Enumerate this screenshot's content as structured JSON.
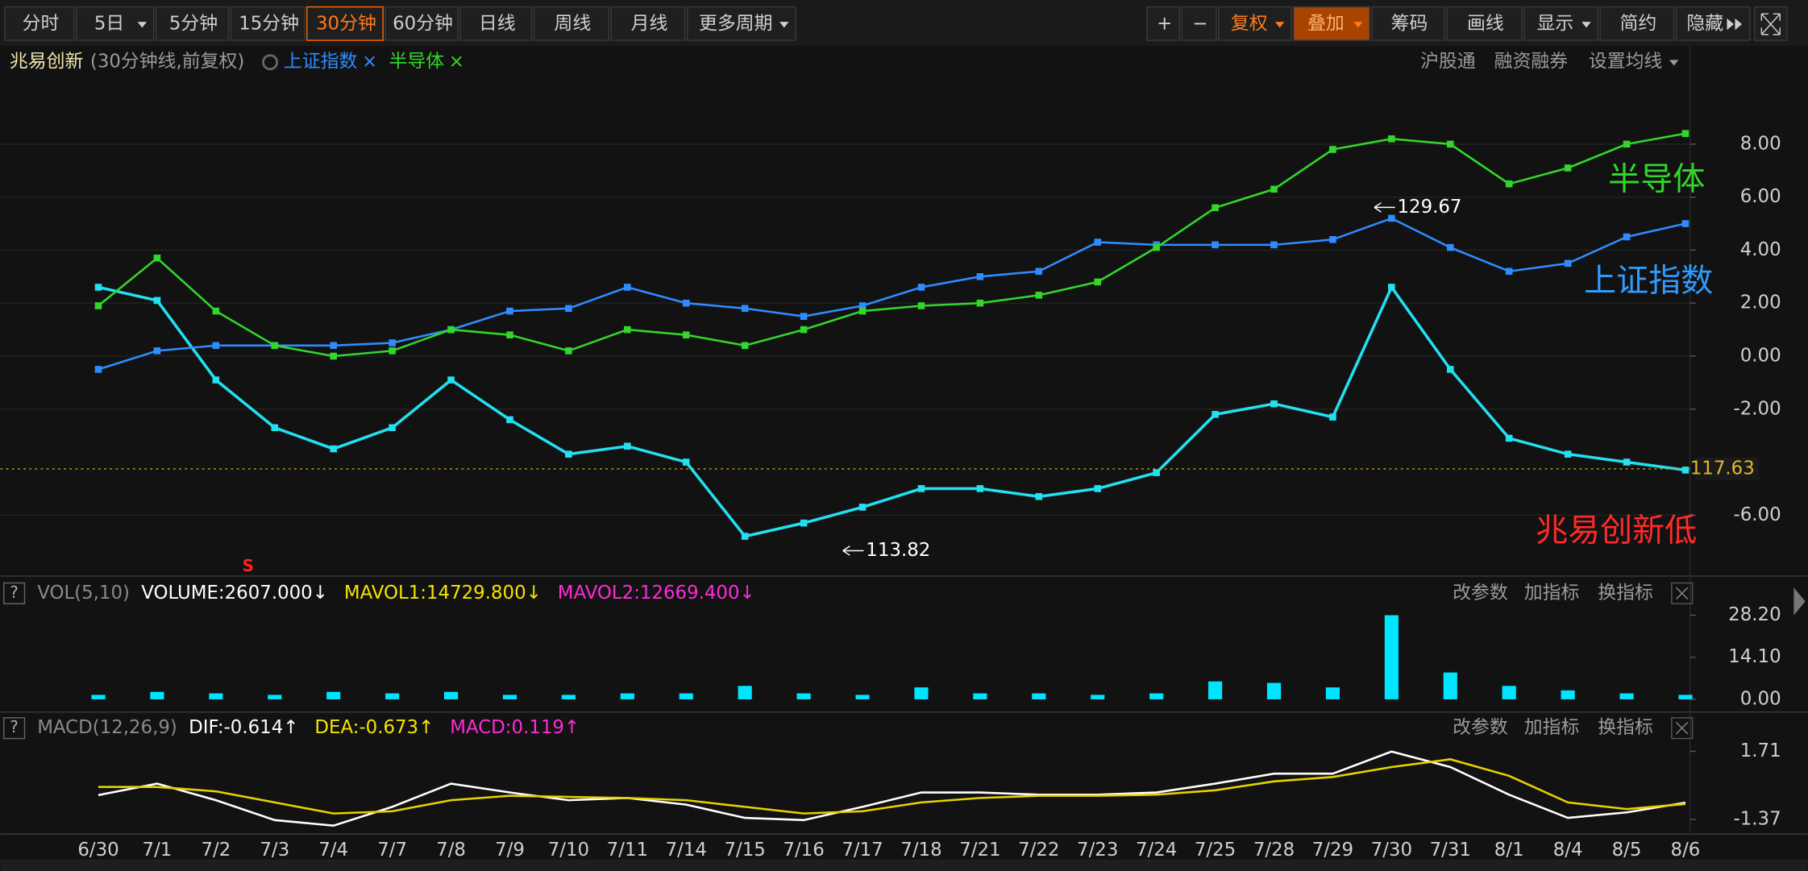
{
  "toolbar": {
    "left": [
      "分时",
      "5日",
      "5分钟",
      "15分钟",
      "30分钟",
      "60分钟",
      "日线",
      "周线",
      "月线",
      "更多周期"
    ],
    "right": [
      "+",
      "−",
      "复权",
      "叠加",
      "筹码",
      "画线",
      "显示",
      "简约",
      "隐藏"
    ]
  },
  "header": {
    "stock": "兆易创新",
    "mode": "(30分钟线,前复权)",
    "close_mark": "×",
    "right": [
      "沪股通",
      "融资融券",
      "设置均线"
    ]
  },
  "panel_buttons": [
    "改参数",
    "加指标",
    "换指标"
  ],
  "help": "?",
  "chart_data": [
    {
      "type": "line",
      "categories": [
        "6/30",
        "7/1",
        "7/2",
        "7/3",
        "7/4",
        "7/7",
        "7/8",
        "7/9",
        "7/10",
        "7/11",
        "7/14",
        "7/15",
        "7/16",
        "7/17",
        "7/18",
        "7/21",
        "7/22",
        "7/23",
        "7/24",
        "7/25",
        "7/28",
        "7/29",
        "7/30",
        "7/31",
        "8/1",
        "8/4",
        "8/5",
        "8/6"
      ],
      "series": [
        {
          "name": "兆易创新",
          "color": "#22e0f0",
          "values": [
            2.6,
            2.1,
            -0.9,
            -2.7,
            -3.5,
            -2.7,
            -0.9,
            -2.4,
            -3.7,
            -3.4,
            -4.0,
            -6.8,
            -6.3,
            -5.7,
            -5.0,
            -5.0,
            -5.3,
            -5.0,
            -4.4,
            -2.2,
            -1.8,
            -2.3,
            2.6,
            -0.5,
            -3.1,
            -3.7,
            -4.0,
            -4.3
          ]
        },
        {
          "name": "上证指数",
          "color": "#2f8cff",
          "values": [
            -0.5,
            0.2,
            0.4,
            0.4,
            0.4,
            0.5,
            1.0,
            1.7,
            1.8,
            2.6,
            2.0,
            1.8,
            1.5,
            1.9,
            2.6,
            3.0,
            3.2,
            4.3,
            4.2,
            4.2,
            4.2,
            4.4,
            5.2,
            4.1,
            3.2,
            3.5,
            4.5,
            5.0
          ]
        },
        {
          "name": "半导体",
          "color": "#33d62b",
          "values": [
            1.9,
            3.7,
            1.7,
            0.4,
            0,
            0.2,
            1.0,
            0.8,
            0.2,
            1.0,
            0.8,
            0.4,
            1.0,
            1.7,
            1.9,
            2.0,
            2.3,
            2.8,
            4.1,
            5.6,
            6.3,
            7.8,
            8.2,
            8.0,
            6.5,
            7.1,
            8.0,
            8.4
          ]
        }
      ],
      "ylim": [
        -8.3,
        11.7
      ],
      "yticks": [
        {
          "value": 8,
          "label": "8.00"
        },
        {
          "value": 6,
          "label": "6.00"
        },
        {
          "value": 4,
          "label": "4.00"
        },
        {
          "value": 2,
          "label": "2.00"
        },
        {
          "value": 0,
          "label": "0.00"
        },
        {
          "value": -2,
          "label": "-2.00"
        },
        {
          "value": -6,
          "label": "-6.00"
        }
      ],
      "grid": true,
      "last_price": 117.63,
      "high_mark": 129.67,
      "low_mark": 113.82,
      "annotations": [
        "半导体",
        "上证指数",
        "兆易创新低"
      ],
      "signal": "S"
    },
    {
      "type": "bar",
      "title": "VOL(5,10)",
      "indicators": [
        {
          "label": "VOLUME:2607.000↓",
          "color": "#ffffff"
        },
        {
          "label": "MAVOL1:14729.800↓",
          "color": "#f5e400"
        },
        {
          "label": "MAVOL2:12669.400↓",
          "color": "#ff2bd6"
        }
      ],
      "values": [
        1.5,
        2.5,
        2,
        1.5,
        2.5,
        2,
        2.5,
        1.5,
        1.5,
        2,
        2,
        4.5,
        2,
        1.5,
        4,
        2,
        2,
        1.5,
        2,
        6,
        5.5,
        4,
        28.2,
        9,
        4.5,
        3,
        2,
        1.5
      ],
      "color": "#00e5ff",
      "ylim": [
        -3.09,
        31.67
      ],
      "yticks": [
        {
          "value": 28.2,
          "label": "28.20"
        },
        {
          "value": 14.1,
          "label": "14.10"
        },
        {
          "value": 0,
          "label": "0.00"
        }
      ]
    },
    {
      "type": "line",
      "title": "MACD(12,26,9)",
      "indicators": [
        {
          "label": "DIF:-0.614↑",
          "color": "#ffffff"
        },
        {
          "label": "DEA:-0.673↑",
          "color": "#f5e400"
        },
        {
          "label": "MACD:0.119↑",
          "color": "#ff2bd6"
        }
      ],
      "series": [
        {
          "color": "#ffffff",
          "values": [
            -0.27,
            0.25,
            -0.5,
            -1.4,
            -1.65,
            -0.8,
            0.25,
            -0.15,
            -0.5,
            -0.4,
            -0.7,
            -1.3,
            -1.4,
            -0.8,
            -0.15,
            -0.15,
            -0.25,
            -0.25,
            -0.15,
            0.25,
            0.7,
            0.7,
            1.7,
            1.0,
            -0.25,
            -1.3,
            -1.05,
            -0.61
          ]
        },
        {
          "color": "#e6d200",
          "values": [
            0.1,
            0.1,
            -0.1,
            -0.6,
            -1.1,
            -1.0,
            -0.5,
            -0.3,
            -0.35,
            -0.4,
            -0.5,
            -0.8,
            -1.1,
            -1.0,
            -0.6,
            -0.4,
            -0.3,
            -0.3,
            -0.25,
            -0.05,
            0.35,
            0.55,
            1.0,
            1.35,
            0.6,
            -0.6,
            -0.9,
            -0.67
          ]
        }
      ],
      "ylim": [
        -1.93,
        3.28
      ],
      "yticks": [
        {
          "value": 1.71,
          "label": "1.71"
        },
        {
          "value": -1.37,
          "label": "-1.37"
        }
      ]
    }
  ]
}
